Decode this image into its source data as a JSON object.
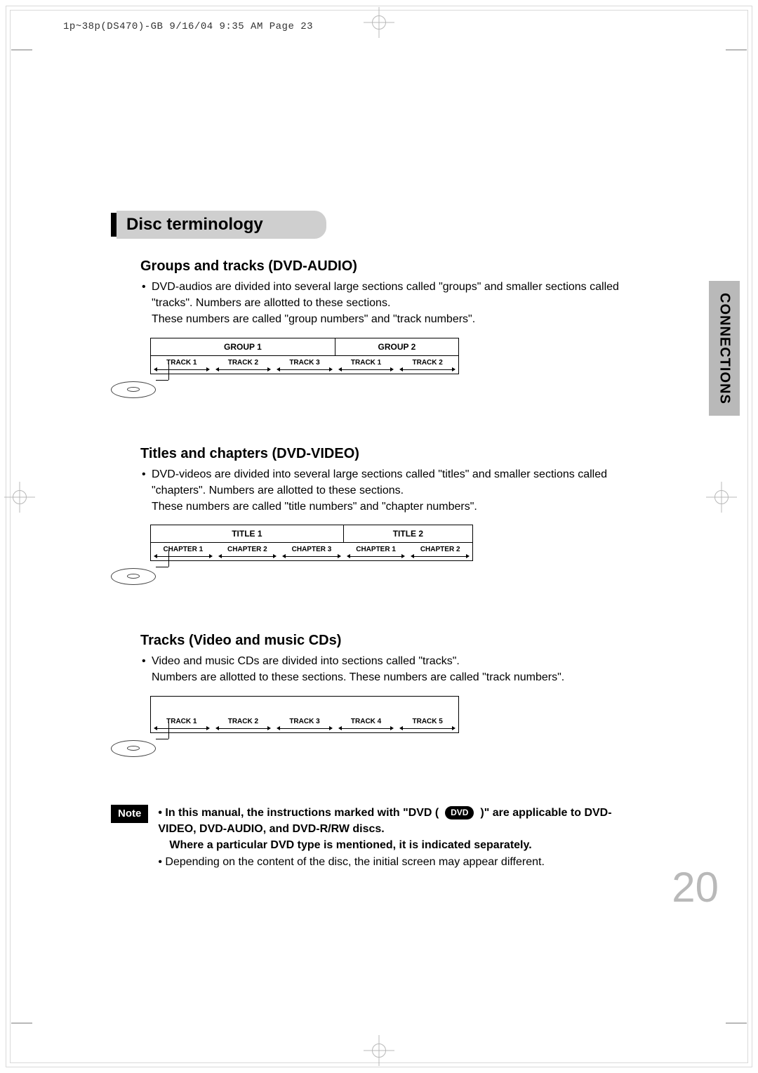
{
  "header": "1p~38p(DS470)-GB  9/16/04 9:35 AM  Page 23",
  "sidebar_label": "CONNECTIONS",
  "page_number": "20",
  "title": "Disc terminology",
  "sections": {
    "s1": {
      "heading": "Groups and tracks (DVD-AUDIO)",
      "body": "DVD-audios are divided into several large sections called \"groups\" and smaller sections called \"tracks\". Numbers are allotted to these sections.\nThese numbers are called \"group numbers\" and \"track numbers\".",
      "groups": [
        {
          "label": "GROUP 1",
          "tracks": [
            "TRACK 1",
            "TRACK 2",
            "TRACK 3"
          ]
        },
        {
          "label": "GROUP 2",
          "tracks": [
            "TRACK 1",
            "TRACK 2"
          ]
        }
      ],
      "track_width": 88
    },
    "s2": {
      "heading": "Titles and chapters (DVD-VIDEO)",
      "body": "DVD-videos are divided into several large sections called \"titles\" and smaller sections called \"chapters\". Numbers are allotted to these sections.\nThese numbers are called \"title numbers\" and \"chapter numbers\".",
      "groups": [
        {
          "label": "TITLE 1",
          "tracks": [
            "CHAPTER 1",
            "CHAPTER 2",
            "CHAPTER 3"
          ]
        },
        {
          "label": "TITLE 2",
          "tracks": [
            "CHAPTER 1",
            "CHAPTER 2"
          ]
        }
      ],
      "track_width": 92
    },
    "s3": {
      "heading": "Tracks (Video and music CDs)",
      "body": "Video and music CDs are divided into sections called \"tracks\".\nNumbers are allotted to these sections. These numbers are called \"track numbers\".",
      "groups": [
        {
          "label": "",
          "tracks": [
            "TRACK 1",
            "TRACK 2",
            "TRACK 3",
            "TRACK 4",
            "TRACK 5"
          ]
        }
      ],
      "track_width": 88
    }
  },
  "note": {
    "badge": "Note",
    "line1a": "In this manual, the instructions marked with \"DVD (",
    "dvd_pill": "DVD",
    "line1b": ")\" are applicable to DVD-VIDEO, DVD-AUDIO, and DVD-R/RW discs.",
    "line2": "Where a particular DVD type is mentioned, it is indicated separately.",
    "line3": "Depending on the content of the disc, the initial screen may appear different."
  },
  "colors": {
    "gray": "#cfcfcf",
    "sidebar": "#b9b9b9",
    "frame": "#d9d9d9"
  }
}
